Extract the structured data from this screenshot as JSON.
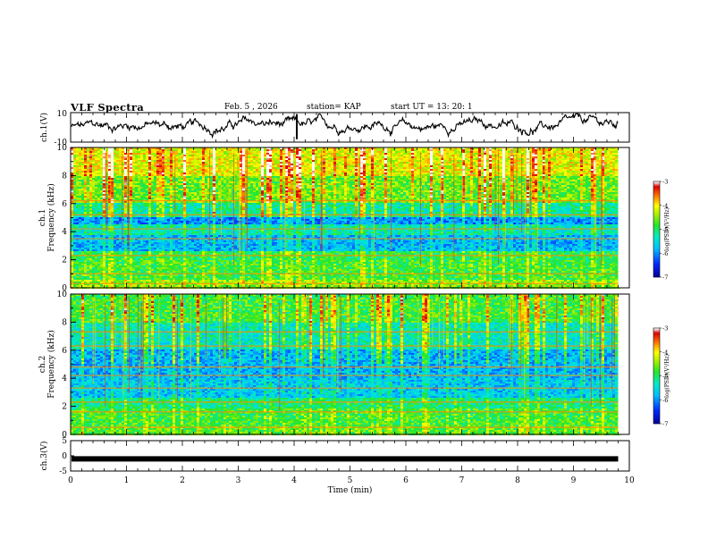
{
  "header": {
    "title": "VLF Spectra",
    "date": "Feb. 5 , 2026",
    "station": "station= KAP",
    "start": "start  UT =   13: 20: 1"
  },
  "chart_data": [
    {
      "type": "line",
      "id": "ch1-waveform",
      "ylabel": "ch.1(V)",
      "ylim": [
        -10,
        10
      ],
      "yticks": [
        "10",
        "-10"
      ],
      "xlim": [
        0,
        10
      ],
      "description_values": "waveform fluctuating roughly between -5 and 8 V over 0 to 9.8 min"
    },
    {
      "type": "heatmap",
      "id": "ch1-spectrogram",
      "ylabel": "ch.1\nFrequency (kHz)",
      "ylabel_lines": [
        "ch.1",
        "Frequency (kHz)"
      ],
      "ylim": [
        0,
        10
      ],
      "yticks": [
        "0",
        "2",
        "4",
        "6",
        "8",
        "10"
      ],
      "xlim": [
        0,
        10
      ],
      "data_end_min": 9.8,
      "colorbar": {
        "label": "log(PSD)(V²/Hz)",
        "range": [
          -7,
          -3
        ],
        "ticks": [
          "-3",
          "-4",
          "-5",
          "-6",
          "-7"
        ]
      }
    },
    {
      "type": "heatmap",
      "id": "ch2-spectrogram",
      "ylabel_lines": [
        "ch.2",
        "Frequency (kHz)"
      ],
      "ylim": [
        0,
        10
      ],
      "yticks": [
        "0",
        "2",
        "4",
        "6",
        "8",
        "10"
      ],
      "xlim": [
        0,
        10
      ],
      "data_end_min": 9.8,
      "colorbar": {
        "label": "log(PSD)(V²/Hz)",
        "range": [
          -7,
          -3
        ],
        "ticks": [
          "-3",
          "-4",
          "-5",
          "-6",
          "-7"
        ]
      }
    },
    {
      "type": "line",
      "id": "ch3-waveform",
      "ylabel": "ch.3(V)",
      "ylim": [
        -5,
        5
      ],
      "yticks": [
        "5",
        "0",
        "-5"
      ],
      "xlim": [
        0,
        10
      ],
      "value": -1,
      "xlabel": "Time  (min)",
      "xticks": [
        "0",
        "1",
        "2",
        "3",
        "4",
        "5",
        "6",
        "7",
        "8",
        "9",
        "10"
      ]
    }
  ]
}
